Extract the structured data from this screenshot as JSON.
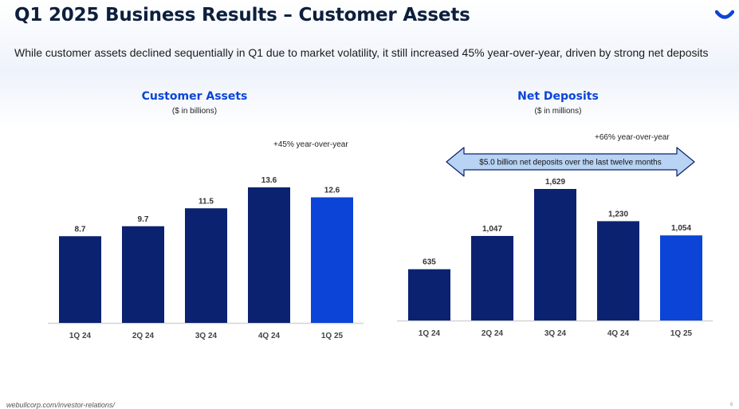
{
  "header": {
    "title": "Q1 2025 Business Results – Customer Assets",
    "subtitle": "While customer assets declined sequentially in Q1 due to market volatility, it still increased 45% year-over-year, driven by strong net deposits"
  },
  "brand": {
    "logo_icon": "webull-logo-icon",
    "accent_color": "#0b44d6",
    "primary_color": "#0b2270"
  },
  "footer": {
    "url": "webullcorp.com/investor-relations/",
    "page": "6"
  },
  "chart_data": [
    {
      "type": "bar",
      "title": "Customer Assets",
      "subtitle": "($ in billions)",
      "categories": [
        "1Q 24",
        "2Q 24",
        "3Q 24",
        "4Q 24",
        "1Q 25"
      ],
      "values": [
        8.7,
        9.7,
        11.5,
        13.6,
        12.6
      ],
      "value_labels": [
        "8.7",
        "9.7",
        "11.5",
        "13.6",
        "12.6"
      ],
      "highlight_index": 4,
      "bar_color": "#0b2270",
      "highlight_color": "#0b44d6",
      "annotation": "+45% year-over-year",
      "ylim": [
        0,
        13.6
      ],
      "grid": false,
      "legend": "none"
    },
    {
      "type": "bar",
      "title": "Net Deposits",
      "subtitle": "($ in millions)",
      "categories": [
        "1Q 24",
        "2Q 24",
        "3Q 24",
        "4Q 24",
        "1Q 25"
      ],
      "values": [
        635,
        1047,
        1629,
        1230,
        1054
      ],
      "value_labels": [
        "635",
        "1,047",
        "1,629",
        "1,230",
        "1,054"
      ],
      "highlight_index": 4,
      "bar_color": "#0b2270",
      "highlight_color": "#0b44d6",
      "annotation": "+66% year-over-year",
      "callout": "$5.0 billion net deposits over the last twelve months",
      "ylim": [
        0,
        1629
      ],
      "grid": false,
      "legend": "none"
    }
  ]
}
